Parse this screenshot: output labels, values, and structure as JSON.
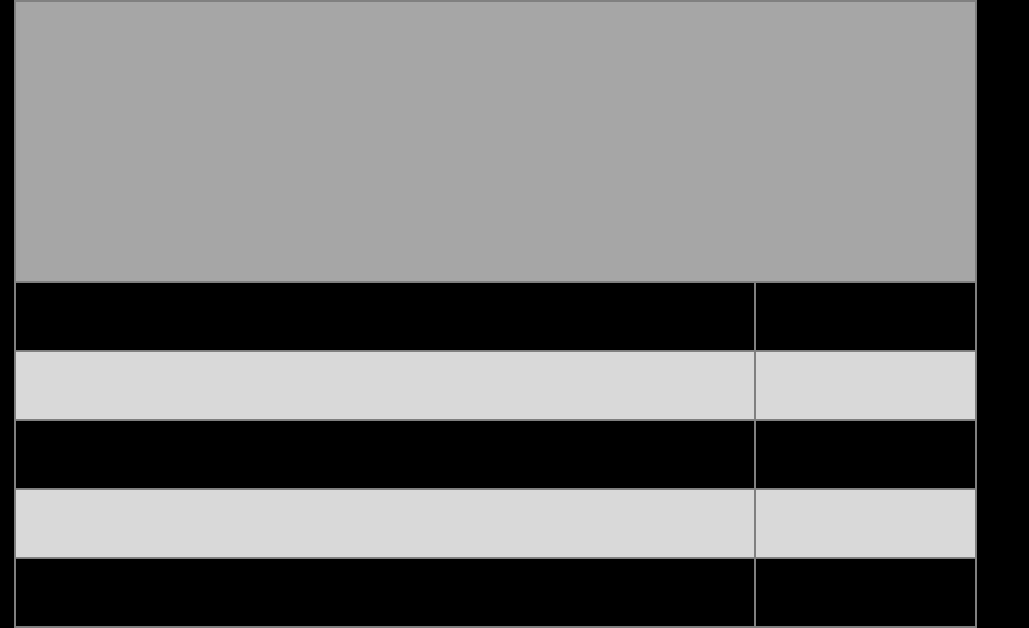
{
  "colors": {
    "background": "#000000",
    "header_fill": "#a6a6a6",
    "border": "#808080",
    "row_dark": "#000000",
    "row_light": "#d9d9d9"
  },
  "table": {
    "header": {
      "text": ""
    },
    "rows": [
      {
        "shade": "dark",
        "cells": [
          "",
          ""
        ]
      },
      {
        "shade": "light",
        "cells": [
          "",
          ""
        ]
      },
      {
        "shade": "dark",
        "cells": [
          "",
          ""
        ]
      },
      {
        "shade": "light",
        "cells": [
          "",
          ""
        ]
      },
      {
        "shade": "dark",
        "cells": [
          "",
          ""
        ]
      }
    ]
  }
}
